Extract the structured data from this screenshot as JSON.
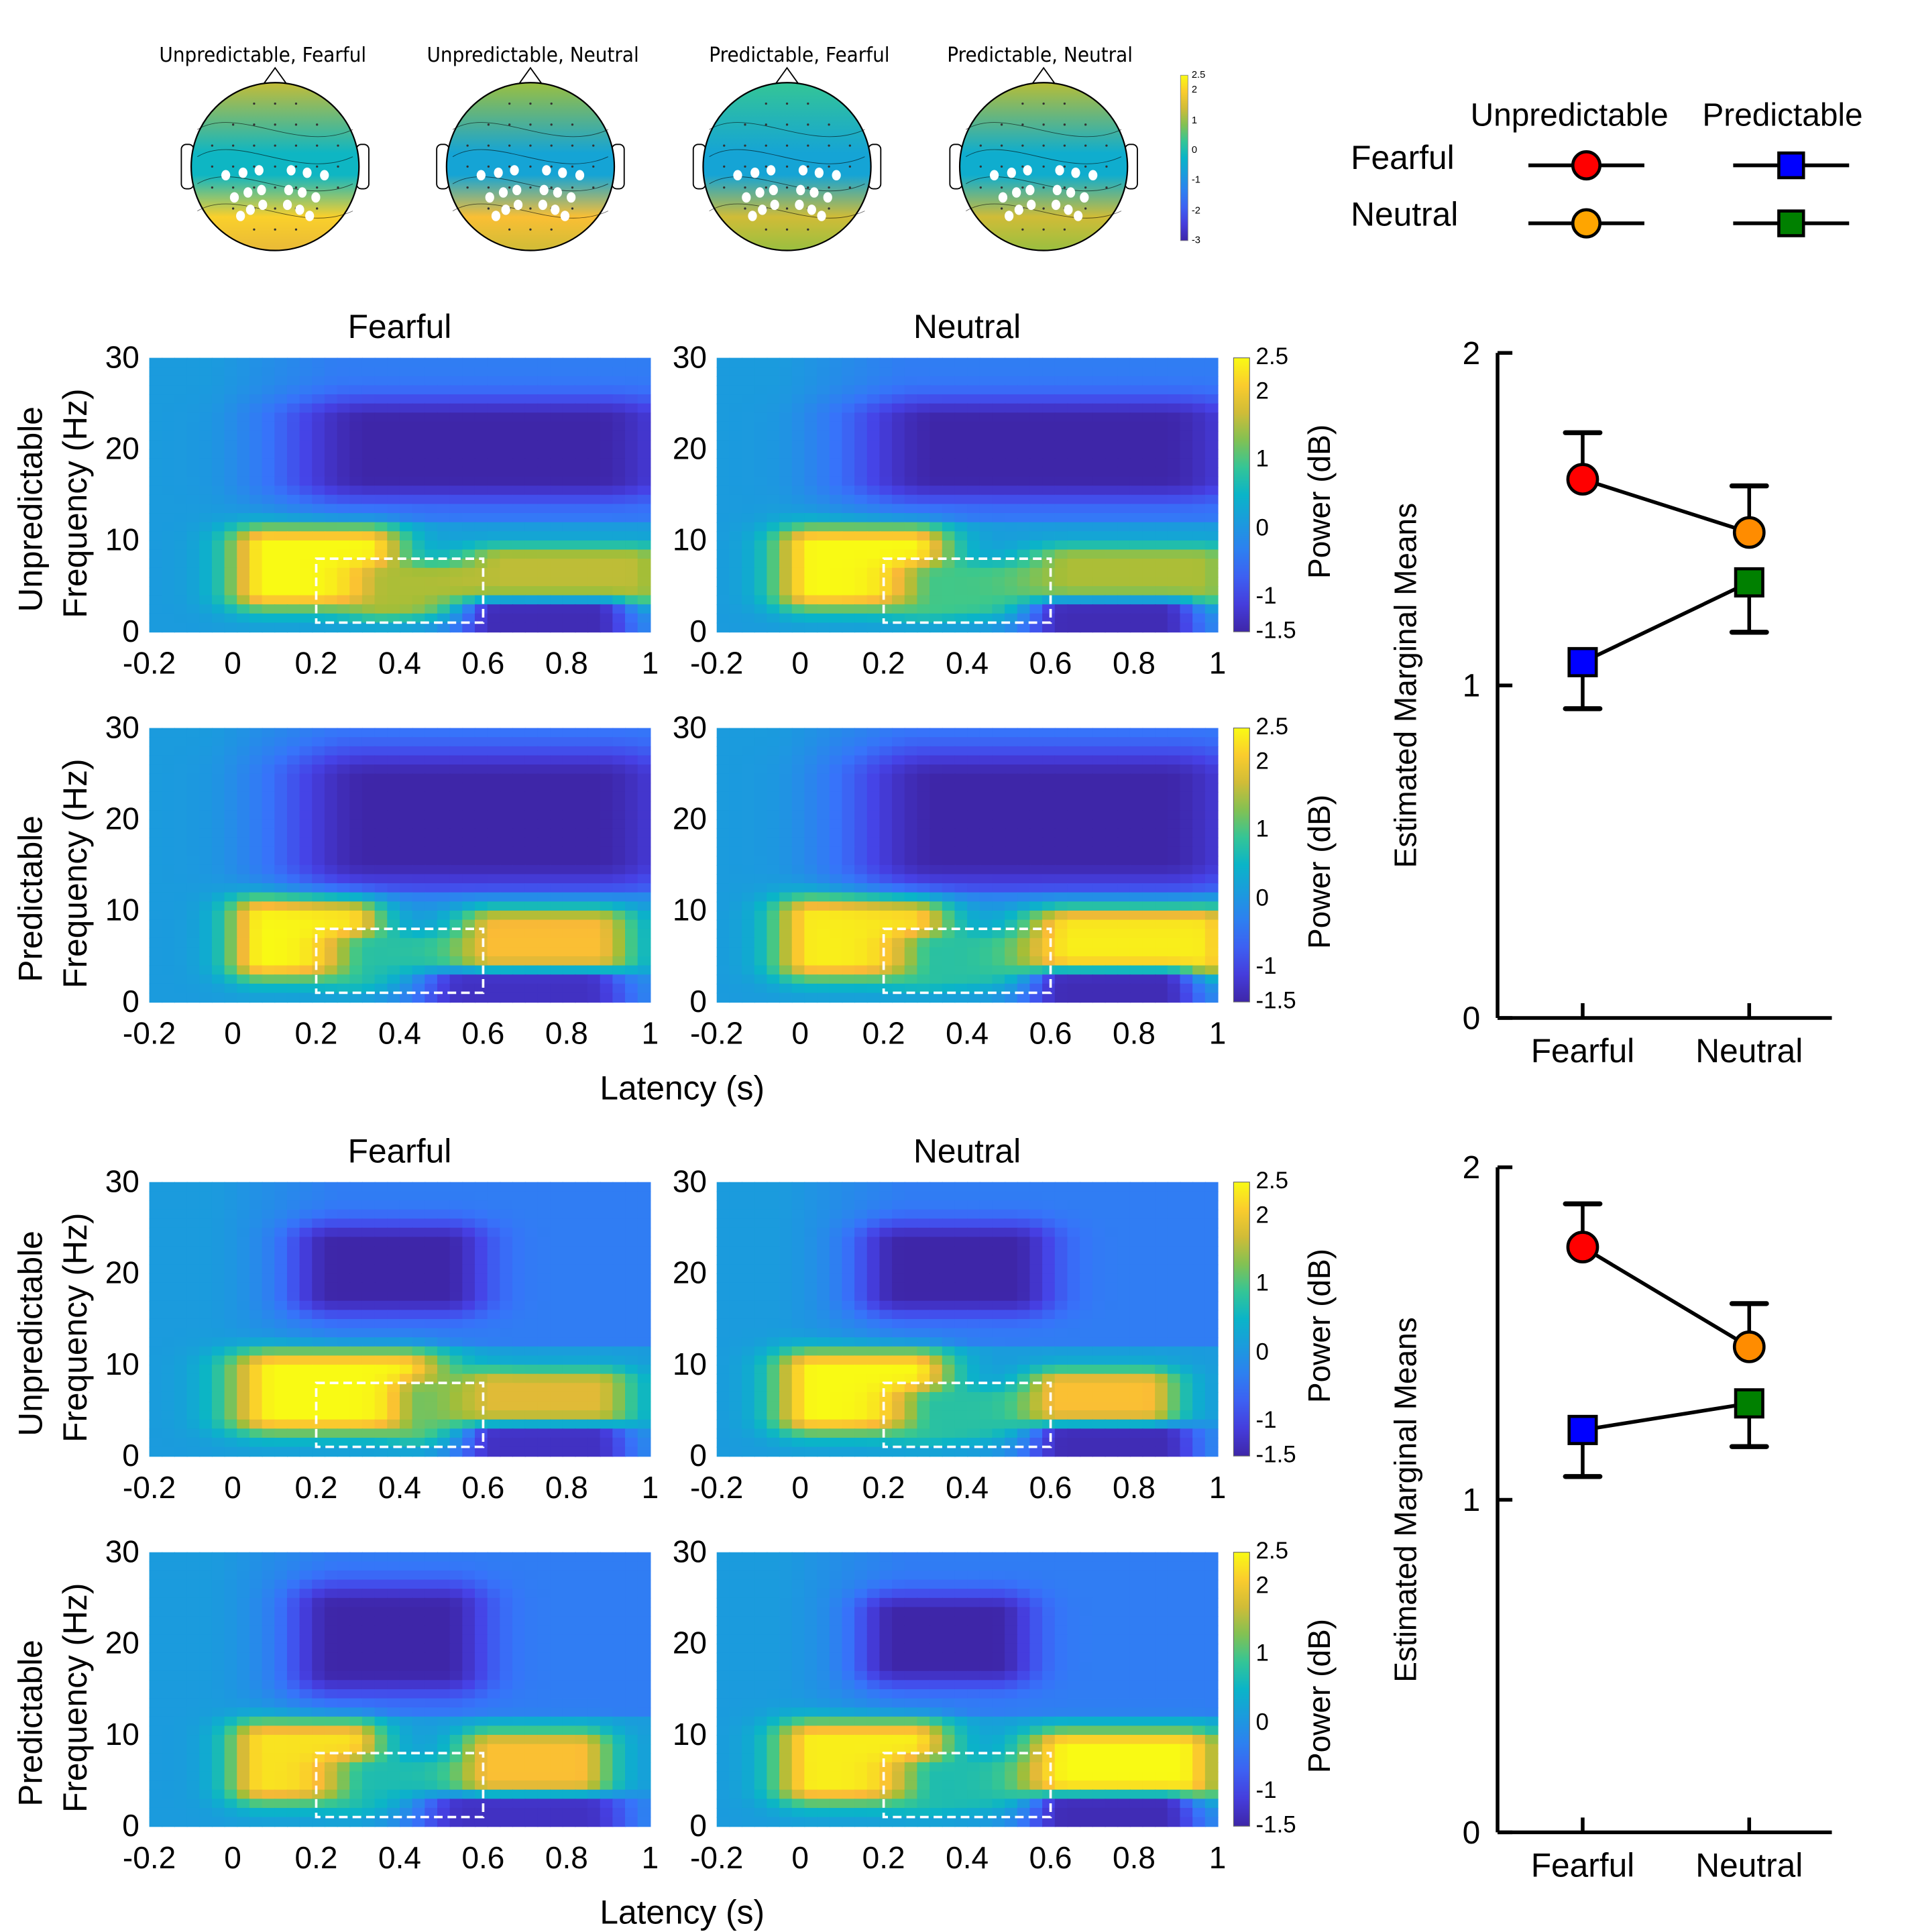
{
  "topomaps": {
    "titles": [
      "Unpredictable, Fearful",
      "Unpredictable, Neutral",
      "Predictable, Fearful",
      "Predictable, Neutral"
    ],
    "colorbar": {
      "ticks": [
        "2.5",
        "2",
        "1",
        "0",
        "-1",
        "-2",
        "-3"
      ],
      "min": -3,
      "max": 2.5
    },
    "highlighted_electrodes_color": "#ffffff"
  },
  "legend": {
    "columns": [
      "Unpredictable",
      "Predictable"
    ],
    "rows": [
      "Fearful",
      "Neutral"
    ],
    "markers": [
      {
        "condition": "Unpredictable, Fearful",
        "shape": "circle",
        "color": "#ff0000"
      },
      {
        "condition": "Predictable, Fearful",
        "shape": "square",
        "color": "#0000ff"
      },
      {
        "condition": "Unpredictable, Neutral",
        "shape": "circle",
        "color": "#ffa500"
      },
      {
        "condition": "Predictable, Neutral",
        "shape": "square",
        "color": "#008000"
      }
    ]
  },
  "spectrogram_labels": {
    "col_titles": [
      "Fearful",
      "Neutral"
    ],
    "row_labels": [
      "Unpredictable",
      "Predictable"
    ],
    "ylabel": "Frequency (Hz)",
    "xlabel": "Latency (s)",
    "xticks": [
      "-0.2",
      "0",
      "0.2",
      "0.4",
      "0.6",
      "0.8",
      "1"
    ],
    "yticks": [
      "30",
      "20",
      "10",
      "0"
    ],
    "colorbar_label": "Power (dB)",
    "colorbar_ticks": [
      "2.5",
      "2",
      "1",
      "0",
      "-1",
      "-1.5"
    ]
  },
  "chart_data": [
    {
      "type": "heatmap",
      "title": "Spectrograms (block A)",
      "xlabel": "Latency (s)",
      "ylabel": "Frequency (Hz)",
      "xlim": [
        -0.2,
        1
      ],
      "ylim": [
        0,
        30
      ],
      "clim": [
        -1.5,
        2.5
      ],
      "colorbar_label": "Power (dB)",
      "roi": {
        "time": [
          0.2,
          0.6
        ],
        "freq": [
          1,
          8
        ]
      },
      "panels": [
        {
          "row": "Unpredictable",
          "col": "Fearful",
          "features": [
            {
              "t": [
                0.05,
                0.35
              ],
              "f": [
                4,
                10
              ],
              "db": 2.5
            },
            {
              "t": [
                0.35,
                0.6
              ],
              "f": [
                3,
                6
              ],
              "db": 1.5
            },
            {
              "t": [
                0.6,
                1.0
              ],
              "f": [
                4,
                8
              ],
              "db": 1.6
            },
            {
              "t": [
                0.2,
                1.0
              ],
              "f": [
                16,
                24
              ],
              "db": -1.5
            },
            {
              "t": [
                0.6,
                0.9
              ],
              "f": [
                0,
                2
              ],
              "db": -1.4
            }
          ]
        },
        {
          "row": "Unpredictable",
          "col": "Neutral",
          "features": [
            {
              "t": [
                0.0,
                0.3
              ],
              "f": [
                4,
                10
              ],
              "db": 2.5
            },
            {
              "t": [
                0.3,
                0.6
              ],
              "f": [
                3,
                6
              ],
              "db": 1.0
            },
            {
              "t": [
                0.6,
                1.0
              ],
              "f": [
                4,
                8
              ],
              "db": 1.5
            },
            {
              "t": [
                0.2,
                1.0
              ],
              "f": [
                16,
                24
              ],
              "db": -1.5
            },
            {
              "t": [
                0.6,
                0.9
              ],
              "f": [
                0,
                2
              ],
              "db": -1.4
            }
          ]
        },
        {
          "row": "Predictable",
          "col": "Fearful",
          "features": [
            {
              "t": [
                0.05,
                0.3
              ],
              "f": [
                4,
                10
              ],
              "db": 2.5
            },
            {
              "t": [
                0.3,
                0.6
              ],
              "f": [
                3,
                6
              ],
              "db": 0.8
            },
            {
              "t": [
                0.6,
                0.9
              ],
              "f": [
                4,
                9
              ],
              "db": 2.0
            },
            {
              "t": [
                0.2,
                1.0
              ],
              "f": [
                14,
                26
              ],
              "db": -1.5
            },
            {
              "t": [
                0.5,
                0.9
              ],
              "f": [
                0,
                2
              ],
              "db": -1.3
            }
          ]
        },
        {
          "row": "Predictable",
          "col": "Neutral",
          "features": [
            {
              "t": [
                0.0,
                0.3
              ],
              "f": [
                4,
                10
              ],
              "db": 2.4
            },
            {
              "t": [
                0.3,
                0.6
              ],
              "f": [
                3,
                6
              ],
              "db": 0.8
            },
            {
              "t": [
                0.6,
                1.0
              ],
              "f": [
                4,
                9
              ],
              "db": 2.4
            },
            {
              "t": [
                0.2,
                1.0
              ],
              "f": [
                14,
                26
              ],
              "db": -1.5
            },
            {
              "t": [
                0.6,
                0.9
              ],
              "f": [
                0,
                2
              ],
              "db": -1.4
            }
          ]
        }
      ]
    },
    {
      "type": "heatmap",
      "title": "Spectrograms (block B)",
      "xlabel": "Latency (s)",
      "ylabel": "Frequency (Hz)",
      "xlim": [
        -0.2,
        1
      ],
      "ylim": [
        0,
        30
      ],
      "clim": [
        -1.5,
        2.5
      ],
      "colorbar_label": "Power (dB)",
      "roi": {
        "time": [
          0.2,
          0.6
        ],
        "freq": [
          1,
          8
        ]
      },
      "panels": [
        {
          "row": "Unpredictable",
          "col": "Fearful",
          "features": [
            {
              "t": [
                0.05,
                0.45
              ],
              "f": [
                4,
                10
              ],
              "db": 2.5
            },
            {
              "t": [
                0.45,
                0.6
              ],
              "f": [
                3,
                7
              ],
              "db": 1.2
            },
            {
              "t": [
                0.6,
                0.9
              ],
              "f": [
                4,
                8
              ],
              "db": 1.8
            },
            {
              "t": [
                0.2,
                0.55
              ],
              "f": [
                17,
                24
              ],
              "db": -1.5
            },
            {
              "t": [
                0.6,
                0.9
              ],
              "f": [
                0,
                2
              ],
              "db": -1.3
            }
          ]
        },
        {
          "row": "Unpredictable",
          "col": "Neutral",
          "features": [
            {
              "t": [
                0.0,
                0.3
              ],
              "f": [
                4,
                10
              ],
              "db": 2.5
            },
            {
              "t": [
                0.3,
                0.6
              ],
              "f": [
                3,
                6
              ],
              "db": 0.8
            },
            {
              "t": [
                0.6,
                0.85
              ],
              "f": [
                4,
                8
              ],
              "db": 2.0
            },
            {
              "t": [
                0.2,
                0.55
              ],
              "f": [
                17,
                24
              ],
              "db": -1.5
            },
            {
              "t": [
                0.6,
                0.9
              ],
              "f": [
                0,
                2
              ],
              "db": -1.4
            }
          ]
        },
        {
          "row": "Predictable",
          "col": "Fearful",
          "features": [
            {
              "t": [
                0.05,
                0.3
              ],
              "f": [
                4,
                10
              ],
              "db": 2.3
            },
            {
              "t": [
                0.3,
                0.6
              ],
              "f": [
                3,
                6
              ],
              "db": 0.7
            },
            {
              "t": [
                0.6,
                0.85
              ],
              "f": [
                4,
                9
              ],
              "db": 2.0
            },
            {
              "t": [
                0.2,
                0.55
              ],
              "f": [
                16,
                25
              ],
              "db": -1.5
            },
            {
              "t": [
                0.5,
                0.9
              ],
              "f": [
                0,
                2
              ],
              "db": -1.3
            }
          ]
        },
        {
          "row": "Predictable",
          "col": "Neutral",
          "features": [
            {
              "t": [
                0.0,
                0.3
              ],
              "f": [
                4,
                10
              ],
              "db": 2.4
            },
            {
              "t": [
                0.3,
                0.6
              ],
              "f": [
                3,
                6
              ],
              "db": 0.7
            },
            {
              "t": [
                0.6,
                0.95
              ],
              "f": [
                4,
                9
              ],
              "db": 2.5
            },
            {
              "t": [
                0.2,
                0.5
              ],
              "f": [
                17,
                24
              ],
              "db": -1.5
            },
            {
              "t": [
                0.6,
                0.9
              ],
              "f": [
                0,
                2
              ],
              "db": -1.4
            }
          ]
        }
      ]
    },
    {
      "type": "line",
      "title": "Estimated Marginal Means (block A)",
      "ylabel": "Estimated Marginal Means",
      "xlabel": "",
      "categories": [
        "Fearful",
        "Neutral"
      ],
      "ylim": [
        0,
        2
      ],
      "yticks": [
        "0",
        "1",
        "2"
      ],
      "series": [
        {
          "name": "Unpredictable",
          "values": [
            1.62,
            1.46
          ],
          "error": [
            0.14,
            0.14
          ],
          "error_dir": "up",
          "marker": "circle",
          "colors": [
            "#ff0000",
            "#ff8c00"
          ]
        },
        {
          "name": "Predictable",
          "values": [
            1.07,
            1.31
          ],
          "error": [
            0.14,
            0.15
          ],
          "error_dir": "down",
          "marker": "square",
          "colors": [
            "#0000ff",
            "#008000"
          ]
        }
      ]
    },
    {
      "type": "line",
      "title": "Estimated Marginal Means (block B)",
      "ylabel": "Estimated Marginal Means",
      "xlabel": "",
      "categories": [
        "Fearful",
        "Neutral"
      ],
      "ylim": [
        0,
        2
      ],
      "yticks": [
        "0",
        "1",
        "2"
      ],
      "series": [
        {
          "name": "Unpredictable",
          "values": [
            1.76,
            1.46
          ],
          "error": [
            0.13,
            0.13
          ],
          "error_dir": "up",
          "marker": "circle",
          "colors": [
            "#ff0000",
            "#ff8c00"
          ]
        },
        {
          "name": "Predictable",
          "values": [
            1.21,
            1.29
          ],
          "error": [
            0.14,
            0.13
          ],
          "error_dir": "down",
          "marker": "square",
          "colors": [
            "#0000ff",
            "#008000"
          ]
        }
      ]
    }
  ]
}
